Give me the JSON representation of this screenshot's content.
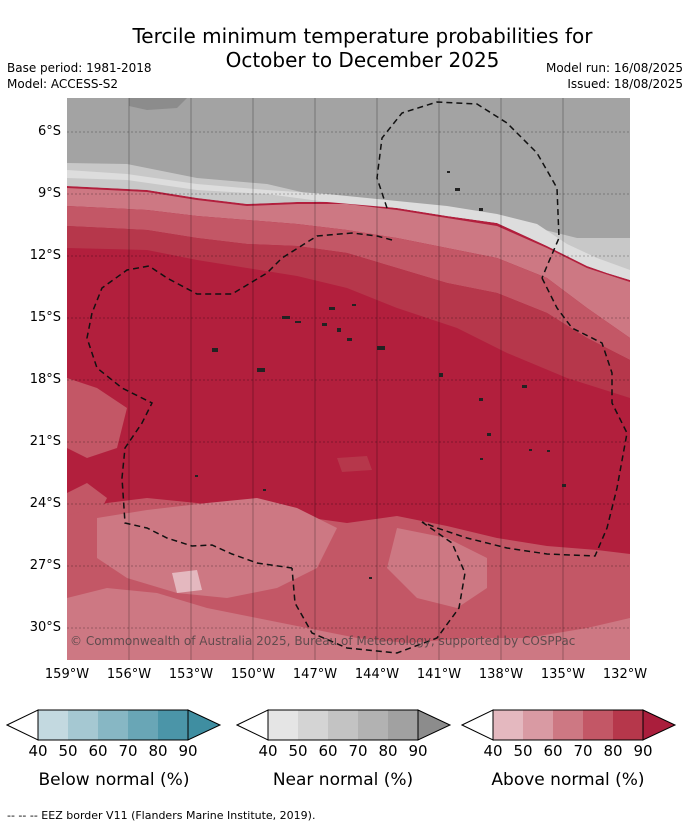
{
  "title_line1": "Tercile minimum temperature probabilities for",
  "title_line2": "October to December 2025",
  "base_period": "Base period: 1981-2018",
  "model": "Model: ACCESS-S2",
  "model_run": "Model run: 16/08/2025",
  "issued": "Issued: 18/08/2025",
  "latitudes": [
    "6°S",
    "9°S",
    "12°S",
    "15°S",
    "18°S",
    "21°S",
    "24°S",
    "27°S",
    "30°S"
  ],
  "longitudes": [
    "159°W",
    "156°W",
    "153°W",
    "150°W",
    "147°W",
    "144°W",
    "141°W",
    "138°W",
    "135°W",
    "132°W"
  ],
  "copyright": "© Commonwealth of Australia 2025, Bureau of Meteorology, supported by COSPPac",
  "legends": [
    {
      "label": "Below normal (%)",
      "ticks": [
        "40",
        "50",
        "60",
        "70",
        "80",
        "90"
      ],
      "colors": [
        "#c3d9e0",
        "#a5c8d2",
        "#87b7c4",
        "#69a6b6",
        "#4b95a8",
        "#3f8ea1"
      ]
    },
    {
      "label": "Near normal (%)",
      "ticks": [
        "40",
        "50",
        "60",
        "70",
        "80",
        "90"
      ],
      "colors": [
        "#e5e5e5",
        "#d4d4d4",
        "#c3c3c3",
        "#b2b2b2",
        "#a1a1a1",
        "#8c8c8c"
      ]
    },
    {
      "label": "Above normal (%)",
      "ticks": [
        "40",
        "50",
        "60",
        "70",
        "80",
        "90"
      ],
      "colors": [
        "#e4b8bf",
        "#d99aa3",
        "#cd7883",
        "#c35766",
        "#b6374b",
        "#aa1e3c"
      ]
    }
  ],
  "footnote": "-- -- -- EEZ border V11 (Flanders Marine Institute, 2019)."
}
